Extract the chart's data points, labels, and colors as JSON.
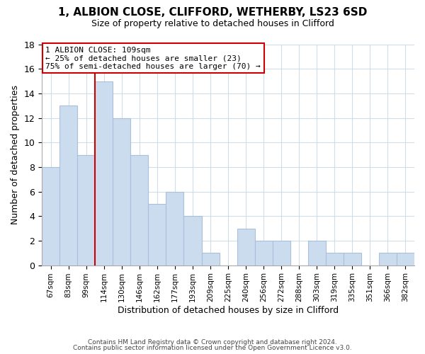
{
  "title": "1, ALBION CLOSE, CLIFFORD, WETHERBY, LS23 6SD",
  "subtitle": "Size of property relative to detached houses in Clifford",
  "xlabel": "Distribution of detached houses by size in Clifford",
  "ylabel": "Number of detached properties",
  "bar_labels": [
    "67sqm",
    "83sqm",
    "99sqm",
    "114sqm",
    "130sqm",
    "146sqm",
    "162sqm",
    "177sqm",
    "193sqm",
    "209sqm",
    "225sqm",
    "240sqm",
    "256sqm",
    "272sqm",
    "288sqm",
    "303sqm",
    "319sqm",
    "335sqm",
    "351sqm",
    "366sqm",
    "382sqm"
  ],
  "bar_values": [
    8,
    13,
    9,
    15,
    12,
    9,
    5,
    6,
    4,
    1,
    0,
    3,
    2,
    2,
    0,
    2,
    1,
    1,
    0,
    1,
    1
  ],
  "bar_color": "#ccdcef",
  "bar_edge_color": "#a8c0dc",
  "vline_x": 2.5,
  "vline_color": "#cc0000",
  "ylim": [
    0,
    18
  ],
  "yticks": [
    0,
    2,
    4,
    6,
    8,
    10,
    12,
    14,
    16,
    18
  ],
  "annotation_line1": "1 ALBION CLOSE: 109sqm",
  "annotation_line2": "← 25% of detached houses are smaller (23)",
  "annotation_line3": "75% of semi-detached houses are larger (70) →",
  "annotation_box_color": "#ffffff",
  "annotation_box_edge": "#cc0000",
  "footer1": "Contains HM Land Registry data © Crown copyright and database right 2024.",
  "footer2": "Contains public sector information licensed under the Open Government Licence v3.0.",
  "background_color": "#ffffff",
  "grid_color": "#d0dce8"
}
